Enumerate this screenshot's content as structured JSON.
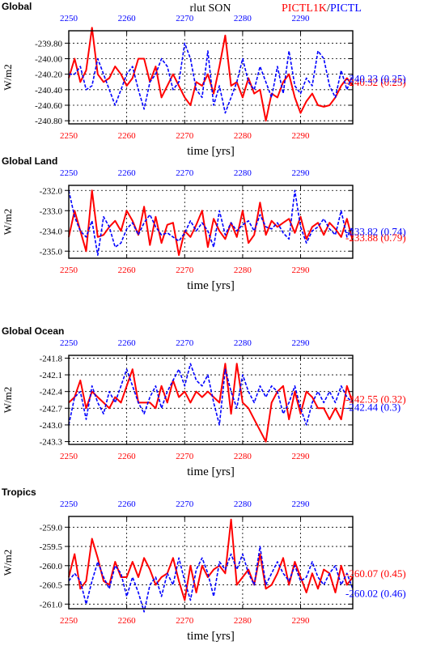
{
  "figure": {
    "center_title": "rlut SON",
    "legend": [
      {
        "label": "PICTL1K",
        "color": "#ff0000"
      },
      {
        "label": "PICTL",
        "color": "#0000ff"
      }
    ],
    "legend_separator": "/"
  },
  "colors": {
    "red": "#ff0000",
    "blue": "#0000ff"
  },
  "chart_data": [
    {
      "type": "line",
      "title": "Global",
      "xlabel": "time [yrs]",
      "ylabel": "W/m2",
      "xlim": [
        2250,
        2299
      ],
      "ylim": [
        -240.84,
        -239.64
      ],
      "xticks": [
        2250,
        2260,
        2270,
        2280,
        2290
      ],
      "yticks": [
        -239.8,
        -240.0,
        -240.2,
        -240.4,
        -240.6,
        -240.8
      ],
      "ytick_labels": [
        "-239.80",
        "-240.00",
        "-240.20",
        "-240.40",
        "-240.60",
        "-240.80"
      ],
      "grid": true,
      "series": [
        {
          "name": "PICTL1K",
          "color": "#ff0000",
          "annotation": "-240.32 (0.25)",
          "x_start": 2250,
          "values": [
            -240.25,
            -240.0,
            -240.3,
            -240.15,
            -239.6,
            -240.2,
            -240.3,
            -240.25,
            -240.1,
            -240.2,
            -240.35,
            -240.25,
            -240.0,
            -240.0,
            -240.3,
            -240.1,
            -240.5,
            -240.35,
            -240.2,
            -240.35,
            -240.5,
            -240.6,
            -240.3,
            -240.35,
            -240.2,
            -240.45,
            -240.1,
            -239.7,
            -240.35,
            -240.3,
            -240.5,
            -240.25,
            -240.45,
            -240.4,
            -240.8,
            -240.45,
            -240.5,
            -240.3,
            -240.2,
            -240.5,
            -240.7,
            -240.55,
            -240.45,
            -240.6,
            -240.62,
            -240.6,
            -240.5,
            -240.35,
            -240.25,
            -240.35
          ]
        },
        {
          "name": "PICTL",
          "color": "#0000ff",
          "annotation": "-240.23 (0.25)",
          "x_start": 2250,
          "values": [
            -240.2,
            -240.2,
            -240.1,
            -240.4,
            -240.35,
            -240.0,
            -240.2,
            -240.4,
            -240.6,
            -240.4,
            -240.2,
            -240.1,
            -240.4,
            -240.65,
            -240.3,
            -240.2,
            -240.0,
            -240.1,
            -240.4,
            -240.3,
            -239.8,
            -240.0,
            -240.4,
            -240.5,
            -239.9,
            -240.6,
            -240.35,
            -240.7,
            -240.5,
            -240.3,
            -240.0,
            -240.3,
            -240.4,
            -240.1,
            -240.3,
            -240.5,
            -240.1,
            -240.45,
            -239.9,
            -240.35,
            -240.45,
            -240.25,
            -240.35,
            -239.9,
            -240.0,
            -240.35,
            -240.5,
            -240.15,
            -240.4,
            -240.2
          ]
        }
      ]
    },
    {
      "type": "line",
      "title": "Global Land",
      "xlabel": "time [yrs]",
      "ylabel": "W/m2",
      "xlim": [
        2250,
        2299
      ],
      "ylim": [
        -235.35,
        -231.75
      ],
      "xticks": [
        2250,
        2260,
        2270,
        2280,
        2290
      ],
      "yticks": [
        -232.0,
        -233.0,
        -234.0,
        -235.0
      ],
      "ytick_labels": [
        "-232.0",
        "-233.0",
        "-234.0",
        "-235.0"
      ],
      "grid": true,
      "series": [
        {
          "name": "PICTL1K",
          "color": "#ff0000",
          "annotation": "-233.88 (0.79)",
          "x_start": 2250,
          "values": [
            -234.3,
            -233.0,
            -234.0,
            -235.0,
            -232.0,
            -234.3,
            -234.2,
            -233.8,
            -233.5,
            -234.0,
            -233.0,
            -233.5,
            -234.2,
            -232.8,
            -234.7,
            -233.3,
            -234.6,
            -233.7,
            -233.6,
            -235.2,
            -234.0,
            -234.3,
            -233.7,
            -233.0,
            -234.8,
            -233.4,
            -234.0,
            -234.4,
            -233.6,
            -234.3,
            -233.0,
            -234.6,
            -234.2,
            -232.6,
            -234.2,
            -233.5,
            -233.8,
            -233.6,
            -233.4,
            -234.1,
            -233.3,
            -234.4,
            -233.8,
            -233.6,
            -234.2,
            -233.6,
            -233.9,
            -234.3,
            -233.4,
            -234.5
          ]
        },
        {
          "name": "PICTL",
          "color": "#0000ff",
          "annotation": "-233.82 (0.74)",
          "x_start": 2250,
          "values": [
            -232.0,
            -233.3,
            -234.0,
            -234.3,
            -233.5,
            -235.2,
            -233.3,
            -233.8,
            -234.8,
            -234.6,
            -233.9,
            -233.6,
            -234.2,
            -233.6,
            -233.2,
            -233.8,
            -234.2,
            -234.1,
            -234.3,
            -234.5,
            -234.1,
            -233.5,
            -234.0,
            -233.6,
            -234.0,
            -234.8,
            -233.0,
            -234.2,
            -233.6,
            -234.0,
            -233.7,
            -233.5,
            -234.0,
            -233.2,
            -233.8,
            -233.9,
            -233.6,
            -234.1,
            -234.4,
            -232.0,
            -233.8,
            -234.6,
            -234.0,
            -233.8,
            -233.4,
            -233.9,
            -234.2,
            -233.0,
            -234.3,
            -233.8
          ]
        }
      ]
    },
    {
      "type": "line",
      "title": "Global Ocean",
      "xlabel": "time [yrs]",
      "ylabel": "W/m2",
      "xlim": [
        2250,
        2299
      ],
      "ylim": [
        -243.35,
        -241.75
      ],
      "xticks": [
        2250,
        2260,
        2270,
        2280,
        2290
      ],
      "yticks": [
        -241.8,
        -242.1,
        -242.4,
        -242.7,
        -243.0,
        -243.3
      ],
      "ytick_labels": [
        "-241.8",
        "-242.1",
        "-242.4",
        "-242.7",
        "-243.0",
        "-243.3"
      ],
      "grid": true,
      "series": [
        {
          "name": "PICTL1K",
          "color": "#ff0000",
          "annotation": "-242.55 (0.32)",
          "x_start": 2250,
          "values": [
            -242.6,
            -242.5,
            -242.2,
            -242.7,
            -242.4,
            -242.5,
            -242.6,
            -242.7,
            -242.5,
            -242.6,
            -242.3,
            -242.0,
            -242.6,
            -242.6,
            -242.6,
            -242.7,
            -242.3,
            -242.6,
            -242.2,
            -242.5,
            -242.4,
            -242.6,
            -242.4,
            -242.5,
            -242.4,
            -242.5,
            -242.6,
            -241.9,
            -242.8,
            -241.9,
            -242.6,
            -242.7,
            -242.9,
            -243.1,
            -243.3,
            -242.6,
            -242.4,
            -242.3,
            -242.9,
            -242.4,
            -242.8,
            -242.4,
            -242.5,
            -242.7,
            -242.7,
            -242.9,
            -242.7,
            -242.9,
            -242.3,
            -242.6
          ]
        },
        {
          "name": "PICTL",
          "color": "#0000ff",
          "annotation": "-242.44 (0.3)",
          "x_start": 2250,
          "values": [
            -243.0,
            -242.5,
            -242.4,
            -242.9,
            -242.3,
            -242.6,
            -242.8,
            -242.4,
            -242.6,
            -242.3,
            -242.0,
            -242.3,
            -242.6,
            -242.8,
            -242.5,
            -242.3,
            -242.7,
            -242.4,
            -242.2,
            -242.0,
            -242.3,
            -241.9,
            -242.2,
            -242.3,
            -242.1,
            -242.6,
            -243.0,
            -242.0,
            -242.4,
            -242.7,
            -242.1,
            -242.4,
            -242.6,
            -242.3,
            -242.5,
            -242.3,
            -242.4,
            -242.8,
            -242.6,
            -242.3,
            -242.7,
            -243.0,
            -242.6,
            -242.4,
            -242.6,
            -242.4,
            -242.6,
            -242.3,
            -242.5,
            -242.6
          ]
        }
      ]
    },
    {
      "type": "line",
      "title": "Tropics",
      "xlabel": "time [yrs]",
      "ylabel": "W/m2",
      "xlim": [
        2250,
        2299
      ],
      "ylim": [
        -261.12,
        -258.72
      ],
      "xticks": [
        2250,
        2260,
        2270,
        2280,
        2290
      ],
      "yticks": [
        -259.0,
        -259.5,
        -260.0,
        -260.5,
        -261.0
      ],
      "ytick_labels": [
        "-259.0",
        "-259.5",
        "-260.0",
        "-260.5",
        "-261.0"
      ],
      "grid": true,
      "series": [
        {
          "name": "PICTL1K",
          "color": "#ff0000",
          "annotation": "-260.07 (0.45)",
          "x_start": 2250,
          "values": [
            -260.3,
            -259.7,
            -260.6,
            -260.4,
            -259.3,
            -259.8,
            -260.4,
            -260.5,
            -259.9,
            -260.3,
            -260.3,
            -259.9,
            -260.3,
            -259.8,
            -260.1,
            -260.5,
            -260.3,
            -260.2,
            -259.8,
            -260.4,
            -260.9,
            -260.0,
            -260.7,
            -260.0,
            -260.3,
            -260.1,
            -260.0,
            -260.2,
            -258.8,
            -260.5,
            -260.3,
            -260.1,
            -260.5,
            -259.7,
            -260.6,
            -260.5,
            -260.2,
            -259.8,
            -260.5,
            -259.9,
            -260.3,
            -260.7,
            -260.2,
            -260.6,
            -260.1,
            -260.2,
            -260.7,
            -260.0,
            -260.5,
            -260.3
          ]
        },
        {
          "name": "PICTL",
          "color": "#0000ff",
          "annotation": "-260.02 (0.46)",
          "x_start": 2250,
          "values": [
            -260.4,
            -260.2,
            -260.4,
            -261.0,
            -260.4,
            -259.9,
            -260.3,
            -260.6,
            -260.0,
            -260.2,
            -260.8,
            -260.3,
            -260.7,
            -261.2,
            -260.5,
            -260.3,
            -260.8,
            -260.2,
            -260.5,
            -259.8,
            -260.4,
            -260.9,
            -260.1,
            -259.8,
            -260.2,
            -260.8,
            -259.9,
            -260.1,
            -259.7,
            -260.1,
            -259.7,
            -260.2,
            -260.5,
            -259.5,
            -260.5,
            -260.2,
            -259.9,
            -260.2,
            -260.4,
            -260.0,
            -260.4,
            -260.3,
            -259.9,
            -260.3,
            -260.5,
            -260.2,
            -260.0,
            -260.5,
            -260.2,
            -260.6
          ]
        }
      ]
    }
  ]
}
